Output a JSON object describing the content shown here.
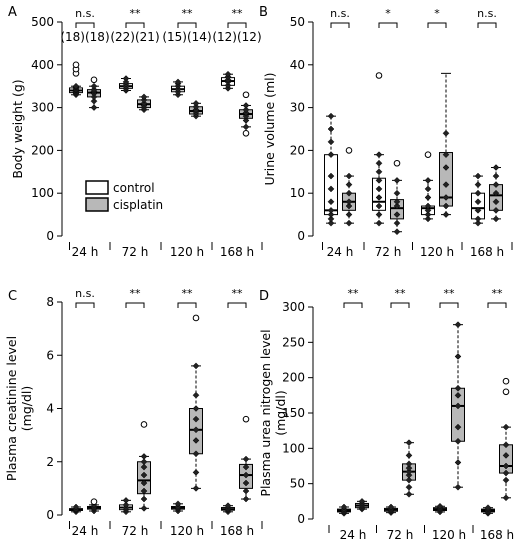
{
  "figure": {
    "colors": {
      "control": "#ffffff",
      "cisplatin": "#b8b8b8",
      "stroke": "#000000"
    }
  },
  "legend": {
    "control": "control",
    "cisplatin": "cisplatin"
  },
  "chart_data": [
    {
      "type": "boxplot",
      "panel_label": "A",
      "ylabel": "Body weight (g)",
      "ylim": [
        0,
        500
      ],
      "yticks": [
        0,
        100,
        200,
        300,
        400,
        500
      ],
      "categories": [
        "24 h",
        "72 h",
        "120 h",
        "168 h"
      ],
      "significance": [
        "n.s.",
        "**",
        "**",
        "**"
      ],
      "sample_sizes": [
        "(18)(18)",
        "(22)(21)",
        "(15)(14)",
        "(12)(12)"
      ],
      "series": [
        {
          "name": "control",
          "boxes": [
            {
              "whisker_low": 330,
              "q1": 335,
              "median": 340,
              "q3": 346,
              "whisker_high": 350,
              "points": [
                330,
                333,
                337,
                340,
                342,
                345,
                348,
                350
              ],
              "outliers": [
                380,
                390,
                400
              ]
            },
            {
              "whisker_low": 340,
              "q1": 345,
              "median": 350,
              "q3": 356,
              "whisker_high": 368,
              "points": [
                340,
                345,
                350,
                355,
                360,
                368
              ],
              "outliers": []
            },
            {
              "whisker_low": 330,
              "q1": 337,
              "median": 343,
              "q3": 350,
              "whisker_high": 360,
              "points": [
                330,
                337,
                343,
                350,
                356,
                360
              ],
              "outliers": []
            },
            {
              "whisker_low": 345,
              "q1": 352,
              "median": 362,
              "q3": 370,
              "whisker_high": 378,
              "points": [
                345,
                352,
                360,
                365,
                372,
                378
              ],
              "outliers": []
            }
          ]
        },
        {
          "name": "cisplatin",
          "boxes": [
            {
              "whisker_low": 300,
              "q1": 325,
              "median": 335,
              "q3": 342,
              "whisker_high": 350,
              "points": [
                300,
                315,
                325,
                333,
                338,
                342,
                350
              ],
              "outliers": [
                365
              ]
            },
            {
              "whisker_low": 295,
              "q1": 300,
              "median": 308,
              "q3": 318,
              "whisker_high": 325,
              "points": [
                295,
                300,
                305,
                310,
                318,
                325
              ],
              "outliers": []
            },
            {
              "whisker_low": 280,
              "q1": 285,
              "median": 292,
              "q3": 302,
              "whisker_high": 310,
              "points": [
                280,
                285,
                290,
                295,
                302,
                310
              ],
              "outliers": []
            },
            {
              "whisker_low": 255,
              "q1": 275,
              "median": 285,
              "q3": 295,
              "whisker_high": 305,
              "points": [
                255,
                270,
                280,
                288,
                295,
                305
              ],
              "outliers": [
                240,
                330
              ]
            }
          ]
        }
      ]
    },
    {
      "type": "boxplot",
      "panel_label": "B",
      "ylabel": "Urine volume (ml)",
      "ylim": [
        0,
        50
      ],
      "yticks": [
        0,
        10,
        20,
        30,
        40,
        50
      ],
      "categories": [
        "24 h",
        "72 h",
        "120 h",
        "168 h"
      ],
      "significance": [
        "n.s.",
        "*",
        "*",
        "n.s."
      ],
      "series": [
        {
          "name": "control",
          "boxes": [
            {
              "whisker_low": 3,
              "q1": 5,
              "median": 6,
              "q3": 19,
              "whisker_high": 28,
              "points": [
                3,
                4,
                5,
                6,
                8,
                11,
                14,
                19,
                22,
                25,
                28
              ],
              "outliers": []
            },
            {
              "whisker_low": 3,
              "q1": 6,
              "median": 8,
              "q3": 13.5,
              "whisker_high": 19,
              "points": [
                3,
                5,
                7,
                9,
                11,
                13,
                15,
                17,
                19
              ],
              "outliers": [
                37.5
              ]
            },
            {
              "whisker_low": 4,
              "q1": 5,
              "median": 6.5,
              "q3": 7,
              "whisker_high": 13,
              "points": [
                4,
                5,
                6,
                7,
                9,
                11,
                13
              ],
              "outliers": [
                19
              ]
            },
            {
              "whisker_low": 3,
              "q1": 4,
              "median": 6.5,
              "q3": 10,
              "whisker_high": 14,
              "points": [
                3,
                4,
                6,
                8,
                10,
                12,
                14
              ],
              "outliers": []
            }
          ]
        },
        {
          "name": "cisplatin",
          "boxes": [
            {
              "whisker_low": 3,
              "q1": 6,
              "median": 8,
              "q3": 10,
              "whisker_high": 14,
              "points": [
                3,
                5,
                7,
                8,
                10,
                12,
                14
              ],
              "outliers": [
                20
              ]
            },
            {
              "whisker_low": 1,
              "q1": 4,
              "median": 6.5,
              "q3": 8.5,
              "whisker_high": 13,
              "points": [
                1,
                3,
                5,
                7,
                8,
                10,
                13
              ],
              "outliers": [
                17
              ]
            },
            {
              "whisker_low": 5,
              "q1": 7,
              "median": 9,
              "q3": 19.5,
              "whisker_high": 38,
              "points": [
                5,
                7,
                9,
                12,
                16,
                19,
                24
              ],
              "outliers": []
            },
            {
              "whisker_low": 4,
              "q1": 6,
              "median": 9.5,
              "q3": 12,
              "whisker_high": 16,
              "points": [
                4,
                6,
                8,
                10,
                12,
                14,
                16
              ],
              "outliers": []
            }
          ]
        }
      ]
    },
    {
      "type": "boxplot",
      "panel_label": "C",
      "ylabel": "Plasma creatinine level (mg/dl)",
      "ylim": [
        0,
        8
      ],
      "yticks": [
        0,
        2,
        4,
        6,
        8
      ],
      "categories": [
        "24 h",
        "72 h",
        "120 h",
        "168 h"
      ],
      "significance": [
        "n.s.",
        "**",
        "**",
        "**"
      ],
      "series": [
        {
          "name": "control",
          "boxes": [
            {
              "whisker_low": 0.12,
              "q1": 0.17,
              "median": 0.2,
              "q3": 0.24,
              "whisker_high": 0.3,
              "points": [
                0.12,
                0.17,
                0.2,
                0.24,
                0.3
              ],
              "outliers": []
            },
            {
              "whisker_low": 0.12,
              "q1": 0.2,
              "median": 0.28,
              "q3": 0.38,
              "whisker_high": 0.55,
              "points": [
                0.12,
                0.2,
                0.28,
                0.38,
                0.55
              ],
              "outliers": []
            },
            {
              "whisker_low": 0.15,
              "q1": 0.22,
              "median": 0.27,
              "q3": 0.32,
              "whisker_high": 0.42,
              "points": [
                0.15,
                0.22,
                0.27,
                0.32,
                0.42
              ],
              "outliers": []
            },
            {
              "whisker_low": 0.12,
              "q1": 0.18,
              "median": 0.22,
              "q3": 0.28,
              "whisker_high": 0.35,
              "points": [
                0.12,
                0.18,
                0.22,
                0.28,
                0.35
              ],
              "outliers": []
            }
          ]
        },
        {
          "name": "cisplatin",
          "boxes": [
            {
              "whisker_low": 0.15,
              "q1": 0.22,
              "median": 0.27,
              "q3": 0.32,
              "whisker_high": 0.38,
              "points": [
                0.15,
                0.22,
                0.27,
                0.32,
                0.38
              ],
              "outliers": [
                0.5
              ]
            },
            {
              "whisker_low": 0.25,
              "q1": 0.8,
              "median": 1.3,
              "q3": 2.0,
              "whisker_high": 2.2,
              "points": [
                0.25,
                0.6,
                0.9,
                1.2,
                1.5,
                1.8,
                2.0,
                2.2
              ],
              "outliers": [
                3.4
              ]
            },
            {
              "whisker_low": 1.0,
              "q1": 2.3,
              "median": 3.2,
              "q3": 4.0,
              "whisker_high": 5.6,
              "points": [
                1.0,
                1.6,
                2.3,
                2.8,
                3.2,
                3.6,
                4.0,
                4.5,
                5.6
              ],
              "outliers": [
                7.4
              ]
            },
            {
              "whisker_low": 0.6,
              "q1": 1.0,
              "median": 1.5,
              "q3": 1.9,
              "whisker_high": 2.1,
              "points": [
                0.6,
                0.9,
                1.2,
                1.5,
                1.8,
                2.1
              ],
              "outliers": [
                3.6
              ]
            }
          ]
        }
      ]
    },
    {
      "type": "boxplot",
      "panel_label": "D",
      "ylabel": "Plasma urea nitrogen level (mg/dl)",
      "ylim": [
        0,
        300
      ],
      "yticks": [
        0,
        50,
        100,
        150,
        200,
        250,
        300
      ],
      "categories": [
        "24 h",
        "72 h",
        "120 h",
        "168 h"
      ],
      "significance": [
        "**",
        "**",
        "**",
        "**"
      ],
      "series": [
        {
          "name": "control",
          "boxes": [
            {
              "whisker_low": 8,
              "q1": 10,
              "median": 12,
              "q3": 14,
              "whisker_high": 17,
              "points": [
                8,
                10,
                12,
                14,
                17
              ],
              "outliers": []
            },
            {
              "whisker_low": 9,
              "q1": 11,
              "median": 13,
              "q3": 15,
              "whisker_high": 17,
              "points": [
                9,
                11,
                13,
                15,
                17
              ],
              "outliers": []
            },
            {
              "whisker_low": 10,
              "q1": 12,
              "median": 14,
              "q3": 16,
              "whisker_high": 18,
              "points": [
                10,
                12,
                14,
                16,
                18
              ],
              "outliers": []
            },
            {
              "whisker_low": 8,
              "q1": 10,
              "median": 12,
              "q3": 14,
              "whisker_high": 16,
              "points": [
                8,
                10,
                12,
                14,
                16
              ],
              "outliers": []
            }
          ]
        },
        {
          "name": "cisplatin",
          "boxes": [
            {
              "whisker_low": 14,
              "q1": 16,
              "median": 19,
              "q3": 22,
              "whisker_high": 25,
              "points": [
                14,
                16,
                19,
                22,
                25
              ],
              "outliers": []
            },
            {
              "whisker_low": 35,
              "q1": 55,
              "median": 67,
              "q3": 78,
              "whisker_high": 108,
              "points": [
                35,
                45,
                55,
                62,
                67,
                72,
                78,
                90,
                108
              ],
              "outliers": []
            },
            {
              "whisker_low": 45,
              "q1": 110,
              "median": 160,
              "q3": 185,
              "whisker_high": 275,
              "points": [
                45,
                80,
                110,
                130,
                160,
                175,
                185,
                230,
                275
              ],
              "outliers": []
            },
            {
              "whisker_low": 30,
              "q1": 65,
              "median": 75,
              "q3": 105,
              "whisker_high": 130,
              "points": [
                30,
                55,
                65,
                75,
                90,
                105,
                130
              ],
              "outliers": [
                180,
                195
              ]
            }
          ]
        }
      ]
    }
  ]
}
